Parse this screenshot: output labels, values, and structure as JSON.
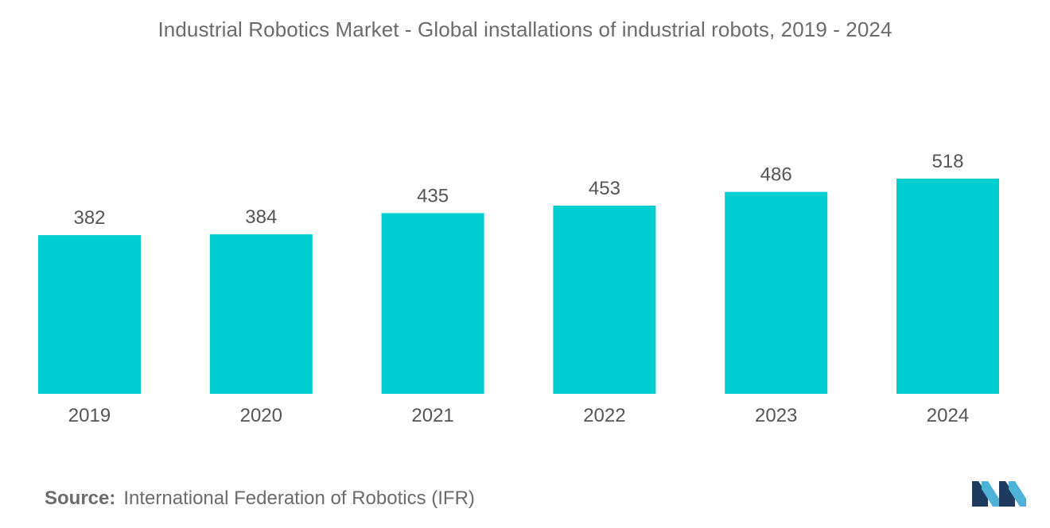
{
  "chart_data": {
    "type": "bar",
    "title": "Industrial Robotics Market - Global installations of industrial robots, 2019 - 2024",
    "categories": [
      "2019",
      "2020",
      "2021",
      "2022",
      "2023",
      "2024"
    ],
    "values": [
      382,
      384,
      435,
      453,
      486,
      518
    ],
    "ylim": [
      0,
      518
    ],
    "grid": false,
    "legend": "none",
    "bar_color": "#00CED1"
  },
  "source": {
    "label": "Source:",
    "text": "International Federation of Robotics (IFR)"
  },
  "logo": {
    "icon": "mordor-intelligence-logo",
    "colors": [
      "#1f3a5f",
      "#4fb3d9"
    ]
  }
}
